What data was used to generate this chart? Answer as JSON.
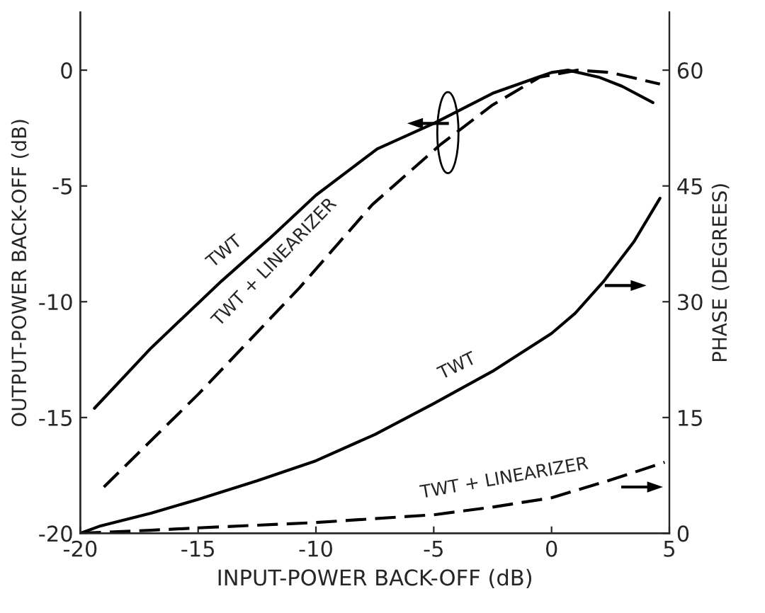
{
  "chart_data": {
    "type": "line",
    "xlabel": "INPUT-POWER BACK-OFF (dB)",
    "ylabel": "OUTPUT-POWER BACK-OFF (dB)",
    "y2label": "PHASE (DEGREES)",
    "xlim": [
      -20,
      5
    ],
    "xticks": [
      -20,
      -15,
      -10,
      -5,
      0,
      5
    ],
    "ylim": [
      -20,
      2.5
    ],
    "yticks": [
      -20,
      -15,
      -10,
      -5,
      0
    ],
    "y2lim": [
      0,
      67.5
    ],
    "y2ticks": [
      0,
      15,
      30,
      45,
      60
    ],
    "grid": false,
    "legend": false,
    "marker": "none",
    "series": [
      {
        "color": "#000000",
        "line_style": "solid",
        "x": [
          -19.4,
          -17,
          -14,
          -12,
          -10,
          -7.4,
          -5,
          -2.5,
          0,
          0.7,
          2,
          3,
          4.3
        ],
        "values": [
          -14.6,
          -12.0,
          -9.1,
          -7.3,
          -5.4,
          -3.4,
          -2.3,
          -1.0,
          -0.1,
          0,
          -0.3,
          -0.7,
          -1.4
        ]
      },
      {
        "color": "#000000",
        "line_style": "dashed",
        "x": [
          -19,
          -15,
          -10.7,
          -7.6,
          -4.7,
          -2.5,
          -0.5,
          1.1,
          2.5,
          4.6
        ],
        "values": [
          -18,
          -14,
          -9.4,
          -5.8,
          -3.2,
          -1.5,
          -0.3,
          0,
          -0.1,
          -0.6
        ]
      },
      {
        "color": "#000000",
        "line_style": "solid",
        "axis": "y2",
        "x": [
          -20,
          -19.2,
          -17,
          -15,
          -12.5,
          -10,
          -7.5,
          -5,
          -2.5,
          0,
          1,
          2.2,
          3.5,
          4.6
        ],
        "values": [
          0,
          0.9,
          2.6,
          4.4,
          6.8,
          9.4,
          12.8,
          16.8,
          21,
          25.9,
          28.5,
          32.6,
          37.8,
          43.4
        ]
      },
      {
        "color": "#000000",
        "line_style": "dashed",
        "axis": "y2",
        "x": [
          -20,
          -17,
          -15,
          -10,
          -5,
          -2.5,
          0,
          2.6,
          4.8
        ],
        "values": [
          0,
          0.4,
          0.7,
          1.4,
          2.4,
          3.4,
          4.6,
          7.0,
          9.2
        ]
      }
    ],
    "annotations": [
      "TWT",
      "TWT + LINEARIZER",
      "TWT",
      "TWT + LINEARIZER"
    ]
  }
}
